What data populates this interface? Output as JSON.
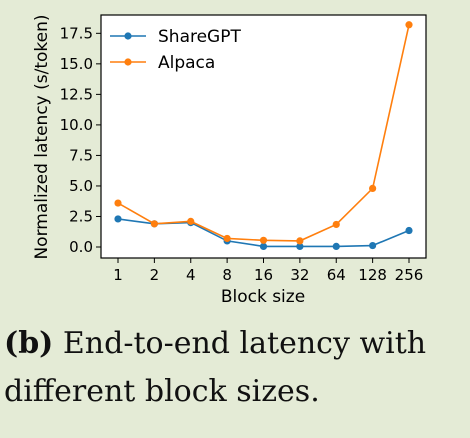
{
  "chart_data": {
    "type": "line",
    "categories": [
      "1",
      "2",
      "4",
      "8",
      "16",
      "32",
      "64",
      "128",
      "256"
    ],
    "xlabel": "Block size",
    "ylabel": "Normalized latency (s/token)",
    "ylim": [
      -0.9,
      19.0
    ],
    "yticks": [
      "0.0",
      "2.5",
      "5.0",
      "7.5",
      "10.0",
      "12.5",
      "15.0",
      "17.5"
    ],
    "ytick_values": [
      0.0,
      2.5,
      5.0,
      7.5,
      10.0,
      12.5,
      15.0,
      17.5
    ],
    "grid": false,
    "legend": "top-left",
    "series": [
      {
        "name": "ShareGPT",
        "color": "#1f77b4",
        "values": [
          2.3,
          1.9,
          2.0,
          0.5,
          0.05,
          0.05,
          0.05,
          0.12,
          1.35
        ]
      },
      {
        "name": "Alpaca",
        "color": "#ff7f0e",
        "values": [
          3.6,
          1.9,
          2.1,
          0.7,
          0.55,
          0.5,
          1.85,
          4.8,
          18.2
        ]
      }
    ]
  },
  "caption": {
    "tag": "(b)",
    "text": " End-to-end latency with different block sizes."
  }
}
